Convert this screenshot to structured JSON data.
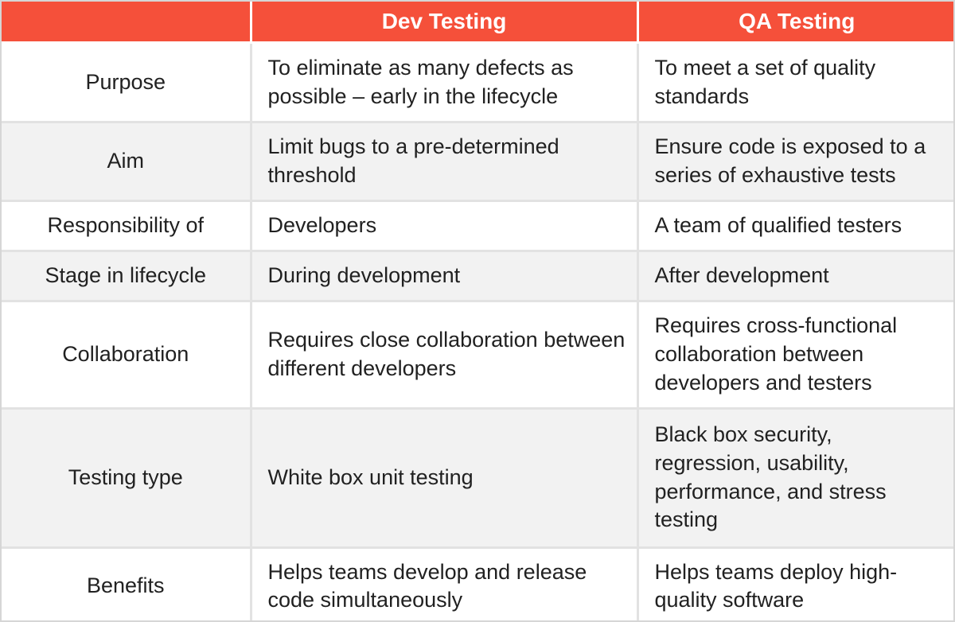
{
  "table": {
    "header": {
      "corner": "",
      "dev": "Dev Testing",
      "qa": "QA Testing"
    },
    "rows": [
      {
        "label": "Purpose",
        "dev": "To eliminate as many defects as possible – early in the lifecycle",
        "qa": "To meet a set of quality standards"
      },
      {
        "label": "Aim",
        "dev": "Limit bugs to a pre-determined threshold",
        "qa": "Ensure code is exposed to a series of exhaustive tests"
      },
      {
        "label": "Responsibility of",
        "dev": "Developers",
        "qa": "A team of qualified testers"
      },
      {
        "label": "Stage in lifecycle",
        "dev": "During development",
        "qa": "After development"
      },
      {
        "label": "Collaboration",
        "dev": "Requires close collaboration between different developers",
        "qa": "Requires cross-functional collaboration between developers and testers"
      },
      {
        "label": "Testing type",
        "dev": "White box unit testing",
        "qa": "Black box security, regression, usability, performance, and stress testing"
      },
      {
        "label": "Benefits",
        "dev": "Helps teams develop and release code simultaneously",
        "qa": "Helps teams deploy high-quality software"
      }
    ],
    "colors": {
      "header_bg": "#f5503a",
      "header_text": "#ffffff",
      "row_bg": "#ffffff",
      "row_alt_bg": "#f2f2f2",
      "body_text": "#212121",
      "divider": "#e2e2e2",
      "outer_border": "#d6d6d6"
    }
  }
}
